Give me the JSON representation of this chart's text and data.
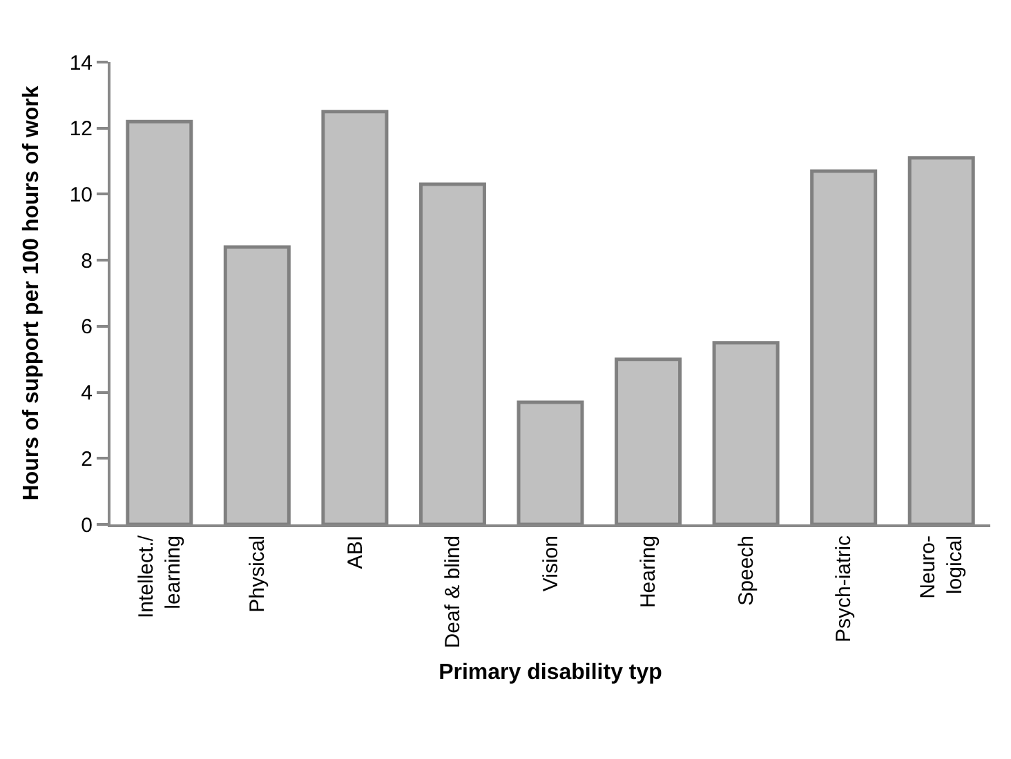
{
  "chart_data": {
    "type": "bar",
    "xlabel": "Primary disability typ",
    "ylabel": "Hours of support per 100 hours of work",
    "categories": [
      "Intellect./\nlearning",
      "Physical",
      "ABI",
      "Deaf & blind",
      "Vision",
      "Hearing",
      "Speech",
      "Psych-iatric",
      "Neuro-\nlogical"
    ],
    "values": [
      12.2,
      8.4,
      12.5,
      10.3,
      3.7,
      5.0,
      5.5,
      10.7,
      11.1
    ],
    "color": "#c0c0c0",
    "ylim": [
      0,
      14
    ],
    "yticks": [
      0,
      2,
      4,
      6,
      8,
      10,
      12,
      14
    ],
    "grid": false
  }
}
